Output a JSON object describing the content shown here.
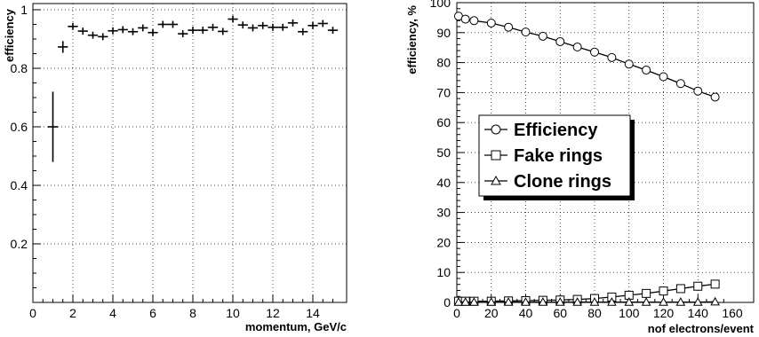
{
  "chart_data": [
    {
      "type": "scatter",
      "xlabel": "momentum, GeV/c",
      "ylabel": "efficiency",
      "xlim": [
        0,
        15
      ],
      "ylim": [
        0,
        1.02
      ],
      "grid": true,
      "xticks": [
        "0",
        "2",
        "4",
        "6",
        "8",
        "10",
        "12",
        "14"
      ],
      "yticks": [
        "0.2",
        "0.4",
        "0.6",
        "0.8",
        "1"
      ],
      "x_error_half_width": 0.25,
      "points": [
        {
          "x": 1.0,
          "y": 0.6,
          "yerr": 0.12
        },
        {
          "x": 1.5,
          "y": 0.873,
          "yerr": 0.02
        },
        {
          "x": 2.0,
          "y": 0.943,
          "yerr": 0.012
        },
        {
          "x": 2.5,
          "y": 0.927,
          "yerr": 0.012
        },
        {
          "x": 3.0,
          "y": 0.913,
          "yerr": 0.012
        },
        {
          "x": 3.5,
          "y": 0.908,
          "yerr": 0.012
        },
        {
          "x": 4.0,
          "y": 0.928,
          "yerr": 0.012
        },
        {
          "x": 4.5,
          "y": 0.932,
          "yerr": 0.012
        },
        {
          "x": 5.0,
          "y": 0.925,
          "yerr": 0.012
        },
        {
          "x": 5.5,
          "y": 0.938,
          "yerr": 0.012
        },
        {
          "x": 6.0,
          "y": 0.922,
          "yerr": 0.012
        },
        {
          "x": 6.5,
          "y": 0.95,
          "yerr": 0.012
        },
        {
          "x": 7.0,
          "y": 0.95,
          "yerr": 0.012
        },
        {
          "x": 7.5,
          "y": 0.918,
          "yerr": 0.012
        },
        {
          "x": 8.0,
          "y": 0.93,
          "yerr": 0.012
        },
        {
          "x": 8.5,
          "y": 0.93,
          "yerr": 0.012
        },
        {
          "x": 9.0,
          "y": 0.94,
          "yerr": 0.012
        },
        {
          "x": 9.5,
          "y": 0.926,
          "yerr": 0.012
        },
        {
          "x": 10.0,
          "y": 0.968,
          "yerr": 0.012
        },
        {
          "x": 10.5,
          "y": 0.948,
          "yerr": 0.012
        },
        {
          "x": 11.0,
          "y": 0.938,
          "yerr": 0.012
        },
        {
          "x": 11.5,
          "y": 0.946,
          "yerr": 0.012
        },
        {
          "x": 12.0,
          "y": 0.94,
          "yerr": 0.012
        },
        {
          "x": 12.5,
          "y": 0.94,
          "yerr": 0.012
        },
        {
          "x": 13.0,
          "y": 0.955,
          "yerr": 0.012
        },
        {
          "x": 13.5,
          "y": 0.925,
          "yerr": 0.012
        },
        {
          "x": 14.0,
          "y": 0.946,
          "yerr": 0.012
        },
        {
          "x": 14.5,
          "y": 0.953,
          "yerr": 0.012
        },
        {
          "x": 15.0,
          "y": 0.93,
          "yerr": 0.012
        }
      ]
    },
    {
      "type": "line",
      "xlabel": "nof electrons/event",
      "ylabel": "efficiency, %",
      "xlim": [
        0,
        160
      ],
      "ylim": [
        0,
        100
      ],
      "grid": true,
      "legend": "middle-left",
      "xticks": [
        "0",
        "20",
        "40",
        "60",
        "80",
        "100",
        "120",
        "140",
        "160"
      ],
      "yticks": [
        "0",
        "10",
        "20",
        "30",
        "40",
        "50",
        "60",
        "70",
        "80",
        "90",
        "100"
      ],
      "x": [
        1,
        5,
        10,
        20,
        30,
        40,
        50,
        60,
        70,
        80,
        90,
        100,
        110,
        120,
        130,
        140,
        150
      ],
      "series": [
        {
          "name": "Efficiency",
          "marker": "circle",
          "values": [
            95.5,
            94.5,
            94.0,
            93.2,
            91.8,
            90.2,
            88.8,
            87.0,
            85.2,
            83.5,
            81.7,
            79.5,
            77.5,
            75.3,
            73.0,
            70.5,
            68.5
          ]
        },
        {
          "name": "Fake rings",
          "marker": "square",
          "values": [
            0.4,
            0.4,
            0.4,
            0.4,
            0.5,
            0.6,
            0.7,
            0.8,
            1.0,
            1.3,
            1.8,
            2.4,
            3.0,
            3.8,
            4.6,
            5.4,
            6.1
          ]
        },
        {
          "name": "Clone rings",
          "marker": "triangle",
          "values": [
            0.1,
            0.1,
            0.1,
            0.1,
            0.1,
            0.1,
            0.1,
            0.1,
            0.1,
            0.1,
            0.1,
            0.1,
            0.1,
            0.1,
            0.1,
            0.1,
            0.2
          ]
        }
      ]
    }
  ]
}
